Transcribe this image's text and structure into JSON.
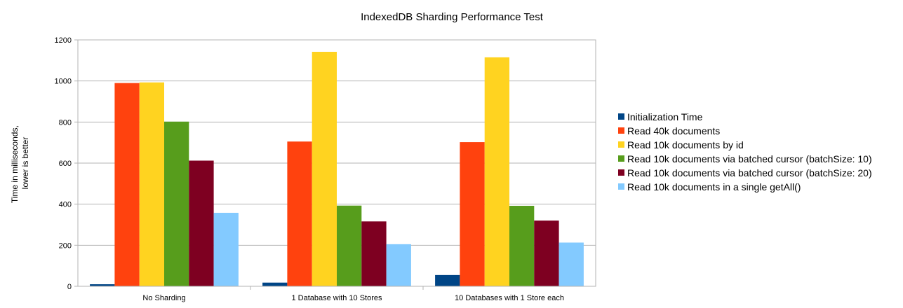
{
  "chart_data": {
    "type": "bar",
    "title": "IndexedDB Sharding Performance Test",
    "ylabel": [
      "Time in milliseconds,",
      "lower is better"
    ],
    "xlabel": "",
    "ylim": [
      0,
      1200
    ],
    "yticks": [
      0,
      200,
      400,
      600,
      800,
      1000,
      1200
    ],
    "grid": true,
    "legend_position": "right",
    "categories": [
      "No Sharding",
      "1 Database with 10 Stores",
      "10 Databases with 1 Store each"
    ],
    "series": [
      {
        "name": "Initialization Time",
        "color": "#004586",
        "values": [
          10,
          18,
          55
        ]
      },
      {
        "name": "Read 40k documents",
        "color": "#ff420e",
        "values": [
          990,
          705,
          702
        ]
      },
      {
        "name": "Read 10k documents by id",
        "color": "#ffd320",
        "values": [
          993,
          1142,
          1115
        ]
      },
      {
        "name": "Read 10k documents via batched cursor (batchSize: 10)",
        "color": "#579d1c",
        "values": [
          802,
          393,
          392
        ]
      },
      {
        "name": "Read 10k documents via batched cursor (batchSize: 20)",
        "color": "#7e0021",
        "values": [
          612,
          316,
          320
        ]
      },
      {
        "name": "Read 10k documents in a single getAll()",
        "color": "#83caff",
        "values": [
          358,
          205,
          213
        ]
      }
    ]
  }
}
